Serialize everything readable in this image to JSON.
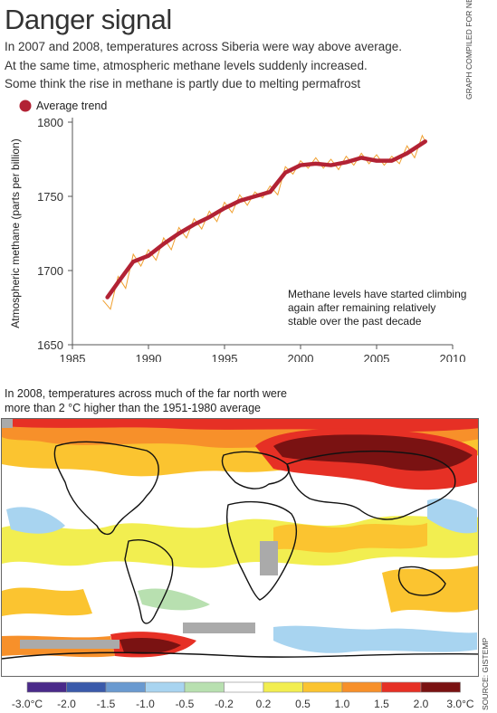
{
  "title": "Danger signal",
  "intro": [
    "In 2007 and 2008, temperatures across Siberia were way above average.",
    "At the same time, atmospheric methane levels suddenly increased.",
    "Some think the rise in methane is partly due to melting permafrost"
  ],
  "credit": "GRAPH COMPILED FOR NEW SCIENTIST BY R. PRINN, R. WANG AND THE AGAGE TEAM",
  "source": "SOURCE: GISTEMP",
  "colors": {
    "trend": "#b22234",
    "monthly": "#f0a030",
    "axis": "#555555"
  },
  "chart_data": [
    {
      "type": "line",
      "ylabel": "Atmospheric methane (parts per billion)",
      "xlabel": "",
      "xlim": [
        1985,
        2010
      ],
      "ylim": [
        1650,
        1800
      ],
      "x_ticks": [
        1985,
        1990,
        1995,
        2000,
        2005,
        2010
      ],
      "y_ticks": [
        1650,
        1700,
        1750,
        1800
      ],
      "legend": {
        "label": "Average trend",
        "position": "top-left"
      },
      "annotation": [
        "Methane levels have started climbing",
        "again after remaining relatively",
        "stable over the past decade"
      ],
      "series": [
        {
          "name": "Average trend",
          "x": [
            1987.3,
            1988,
            1989,
            1990,
            1991,
            1992,
            1993,
            1994,
            1995,
            1996,
            1997,
            1998,
            1999,
            2000,
            2001,
            2002,
            2003,
            2004,
            2005,
            2006,
            2007,
            2008.2
          ],
          "y": [
            1682,
            1692,
            1706,
            1710,
            1718,
            1725,
            1731,
            1736,
            1742,
            1747,
            1750,
            1753,
            1766,
            1771,
            1772,
            1771,
            1773,
            1776,
            1774,
            1774,
            1779,
            1787
          ]
        },
        {
          "x": [
            1987.0,
            1987.5,
            1988.0,
            1988.5,
            1989.0,
            1989.5,
            1990.0,
            1990.5,
            1991.0,
            1991.5,
            1992.0,
            1992.5,
            1993.0,
            1993.5,
            1994.0,
            1994.5,
            1995.0,
            1995.5,
            1996.0,
            1996.5,
            1997.0,
            1997.5,
            1998.0,
            1998.5,
            1999.0,
            1999.5,
            2000.0,
            2000.5,
            2001.0,
            2001.5,
            2002.0,
            2002.5,
            2003.0,
            2003.5,
            2004.0,
            2004.5,
            2005.0,
            2005.5,
            2006.0,
            2006.5,
            2007.0,
            2007.5,
            2008.0,
            2008.2
          ],
          "y": [
            1680,
            1674,
            1696,
            1688,
            1711,
            1703,
            1714,
            1707,
            1722,
            1714,
            1729,
            1722,
            1735,
            1728,
            1740,
            1733,
            1746,
            1739,
            1751,
            1744,
            1753,
            1749,
            1757,
            1751,
            1770,
            1765,
            1774,
            1769,
            1776,
            1769,
            1775,
            1768,
            1777,
            1771,
            1779,
            1772,
            1778,
            1771,
            1777,
            1772,
            1784,
            1776,
            1791,
            1787
          ]
        }
      ]
    },
    {
      "type": "heatmap",
      "caption": [
        "In 2008, temperatures across much of the far north were",
        "more than 2 °C higher than the 1951-1980 average"
      ],
      "scale_labels": [
        "-3.0°C",
        "-2.0",
        "-1.5",
        "-1.0",
        "-0.5",
        "-0.2",
        "0.2",
        "0.5",
        "1.0",
        "1.5",
        "2.0",
        "3.0°C"
      ],
      "scale_colors": [
        "#4a2a8a",
        "#3a5aaa",
        "#6a9ad0",
        "#a8d4f0",
        "#b8e0b0",
        "#ffffff",
        "#f2ee50",
        "#fbc430",
        "#f7902a",
        "#e63025",
        "#7a1212"
      ]
    }
  ]
}
